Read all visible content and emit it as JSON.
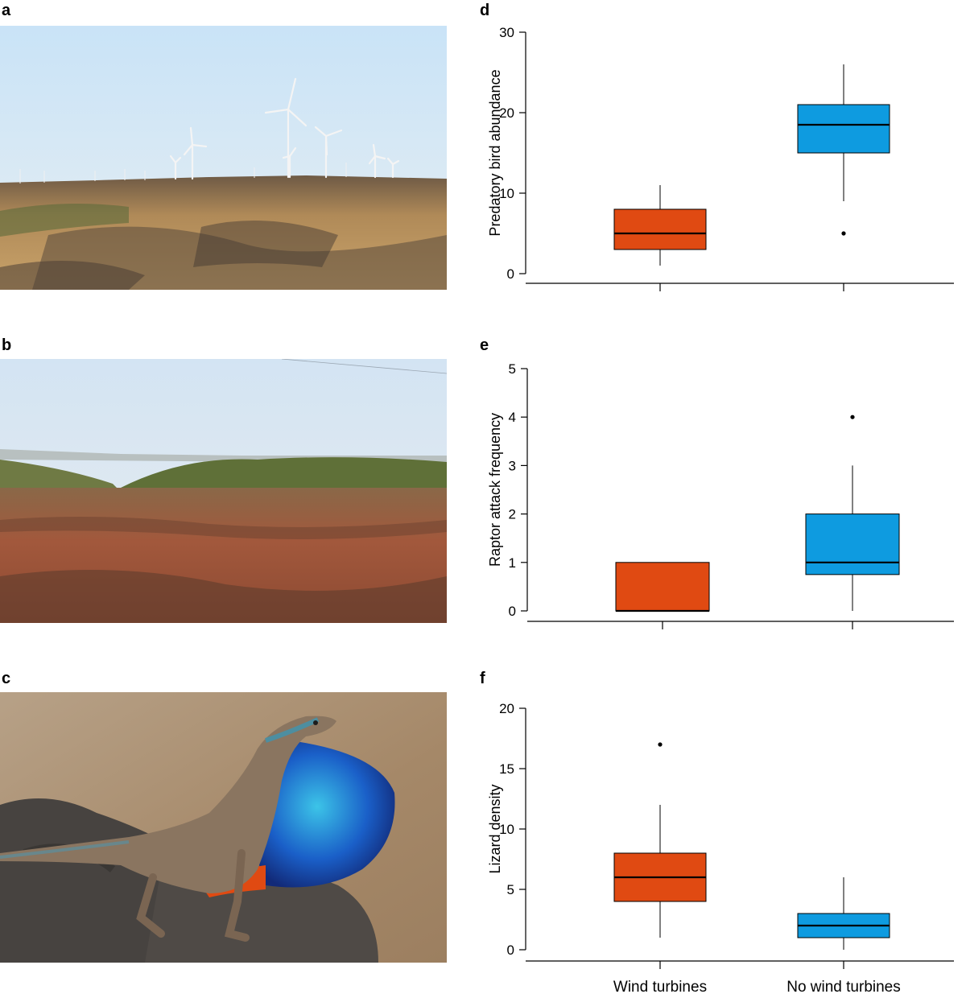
{
  "panels": {
    "a": "a",
    "b": "b",
    "c": "c",
    "d": "d",
    "e": "e",
    "f": "f"
  },
  "colors": {
    "wind_turbines": "#E04A12",
    "no_wind_turbines": "#0E9BE0",
    "sky_a": "#cfe6f6",
    "sky_b": "#dbe7f1"
  },
  "photos": {
    "a": {
      "subject": "wind turbines on dry plateau",
      "icon": "wind-farm-photo"
    },
    "b": {
      "subject": "plateau landscape without turbines",
      "icon": "plateau-photo"
    },
    "c": {
      "subject": "fan-throated lizard with blue dewlap",
      "icon": "lizard-photo"
    }
  },
  "chart_data": [
    {
      "type": "box",
      "panel": "d",
      "ylabel": "Predatory bird abundance",
      "categories": [
        "Wind turbines",
        "No wind turbines"
      ],
      "yticks": [
        0,
        10,
        20,
        30
      ],
      "ylim": [
        -1.5,
        31
      ],
      "boxes": [
        {
          "category": "Wind turbines",
          "whisker_low": 1,
          "q1": 3,
          "median": 5,
          "q3": 8,
          "whisker_high": 11,
          "outliers": []
        },
        {
          "category": "No wind turbines",
          "whisker_low": 9,
          "q1": 15,
          "median": 18.5,
          "q3": 21,
          "whisker_high": 26,
          "outliers": [
            5
          ]
        }
      ]
    },
    {
      "type": "box",
      "panel": "e",
      "ylabel": "Raptor attack frequency",
      "categories": [
        "Wind turbines",
        "No wind turbines"
      ],
      "yticks": [
        0,
        1,
        2,
        3,
        4,
        5
      ],
      "ylim": [
        -0.2,
        5.2
      ],
      "boxes": [
        {
          "category": "Wind turbines",
          "whisker_low": 0,
          "q1": 0,
          "median": 0,
          "q3": 1,
          "whisker_high": 1,
          "outliers": []
        },
        {
          "category": "No wind turbines",
          "whisker_low": 0,
          "q1": 0.75,
          "median": 1,
          "q3": 2,
          "whisker_high": 3,
          "outliers": [
            4
          ]
        }
      ]
    },
    {
      "type": "box",
      "panel": "f",
      "ylabel": "Lizard density",
      "categories": [
        "Wind turbines",
        "No wind turbines"
      ],
      "xlabels_shown": [
        "Wind turbines",
        "No wind turbines"
      ],
      "yticks": [
        0,
        5,
        10,
        15,
        20
      ],
      "ylim": [
        -1,
        21
      ],
      "boxes": [
        {
          "category": "Wind turbines",
          "whisker_low": 1,
          "q1": 4,
          "median": 6,
          "q3": 8,
          "whisker_high": 12,
          "outliers": [
            17
          ]
        },
        {
          "category": "No wind turbines",
          "whisker_low": 0,
          "q1": 1,
          "median": 2,
          "q3": 3,
          "whisker_high": 6,
          "outliers": []
        }
      ]
    }
  ]
}
